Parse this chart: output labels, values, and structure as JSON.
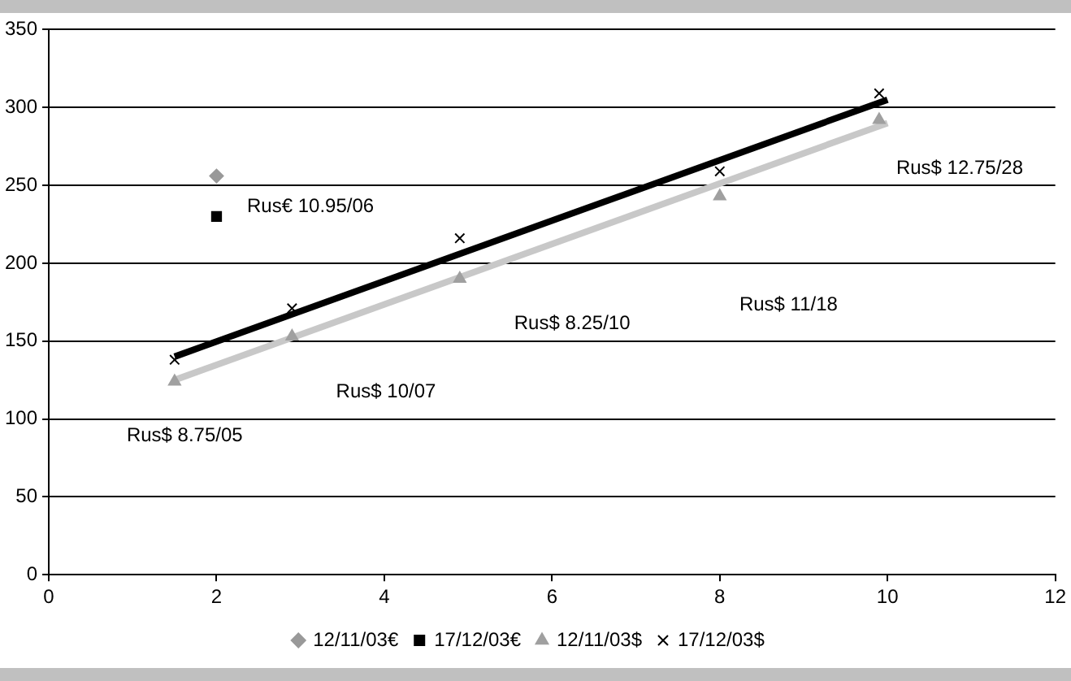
{
  "chart_data": {
    "type": "scatter",
    "xlim": [
      0,
      12
    ],
    "xticks": [
      0,
      2,
      4,
      6,
      8,
      10,
      12
    ],
    "ylim": [
      0,
      350
    ],
    "yticks": [
      0,
      50,
      100,
      150,
      200,
      250,
      300,
      350
    ],
    "grid": "y",
    "legend": "bottom",
    "series": [
      {
        "name": "12/11/03€",
        "color": "#999999",
        "marker": "diamond",
        "x": [
          2
        ],
        "values": [
          256
        ]
      },
      {
        "name": "17/12/03€",
        "color": "#000000",
        "marker": "square",
        "x": [
          2
        ],
        "values": [
          230
        ]
      },
      {
        "name": "12/11/03$",
        "color": "#a0a0a0",
        "marker": "triangle",
        "x": [
          1.5,
          2.9,
          4.9,
          8,
          9.9
        ],
        "values": [
          124,
          153,
          190,
          243,
          292
        ]
      },
      {
        "name": "17/12/03$",
        "color": "#000000",
        "marker": "cross",
        "x": [
          1.5,
          2.9,
          4.9,
          8,
          9.9
        ],
        "values": [
          138,
          171,
          216,
          259,
          309
        ]
      },
      {
        "type": "line",
        "color": "#000000",
        "marker": "none",
        "x": [
          1.5,
          10
        ],
        "values": [
          140,
          305
        ]
      },
      {
        "type": "line",
        "color": "#c8c8c8",
        "marker": "none",
        "x": [
          1.5,
          10
        ],
        "values": [
          125,
          290
        ]
      }
    ],
    "annotations": [
      "Rus$ 8.75/05",
      "Rus$ 10/07",
      "Rus€ 10.95/06",
      "Rus$ 8.25/10",
      "Rus$ 11/18",
      "Rus$ 12.75/28"
    ]
  }
}
